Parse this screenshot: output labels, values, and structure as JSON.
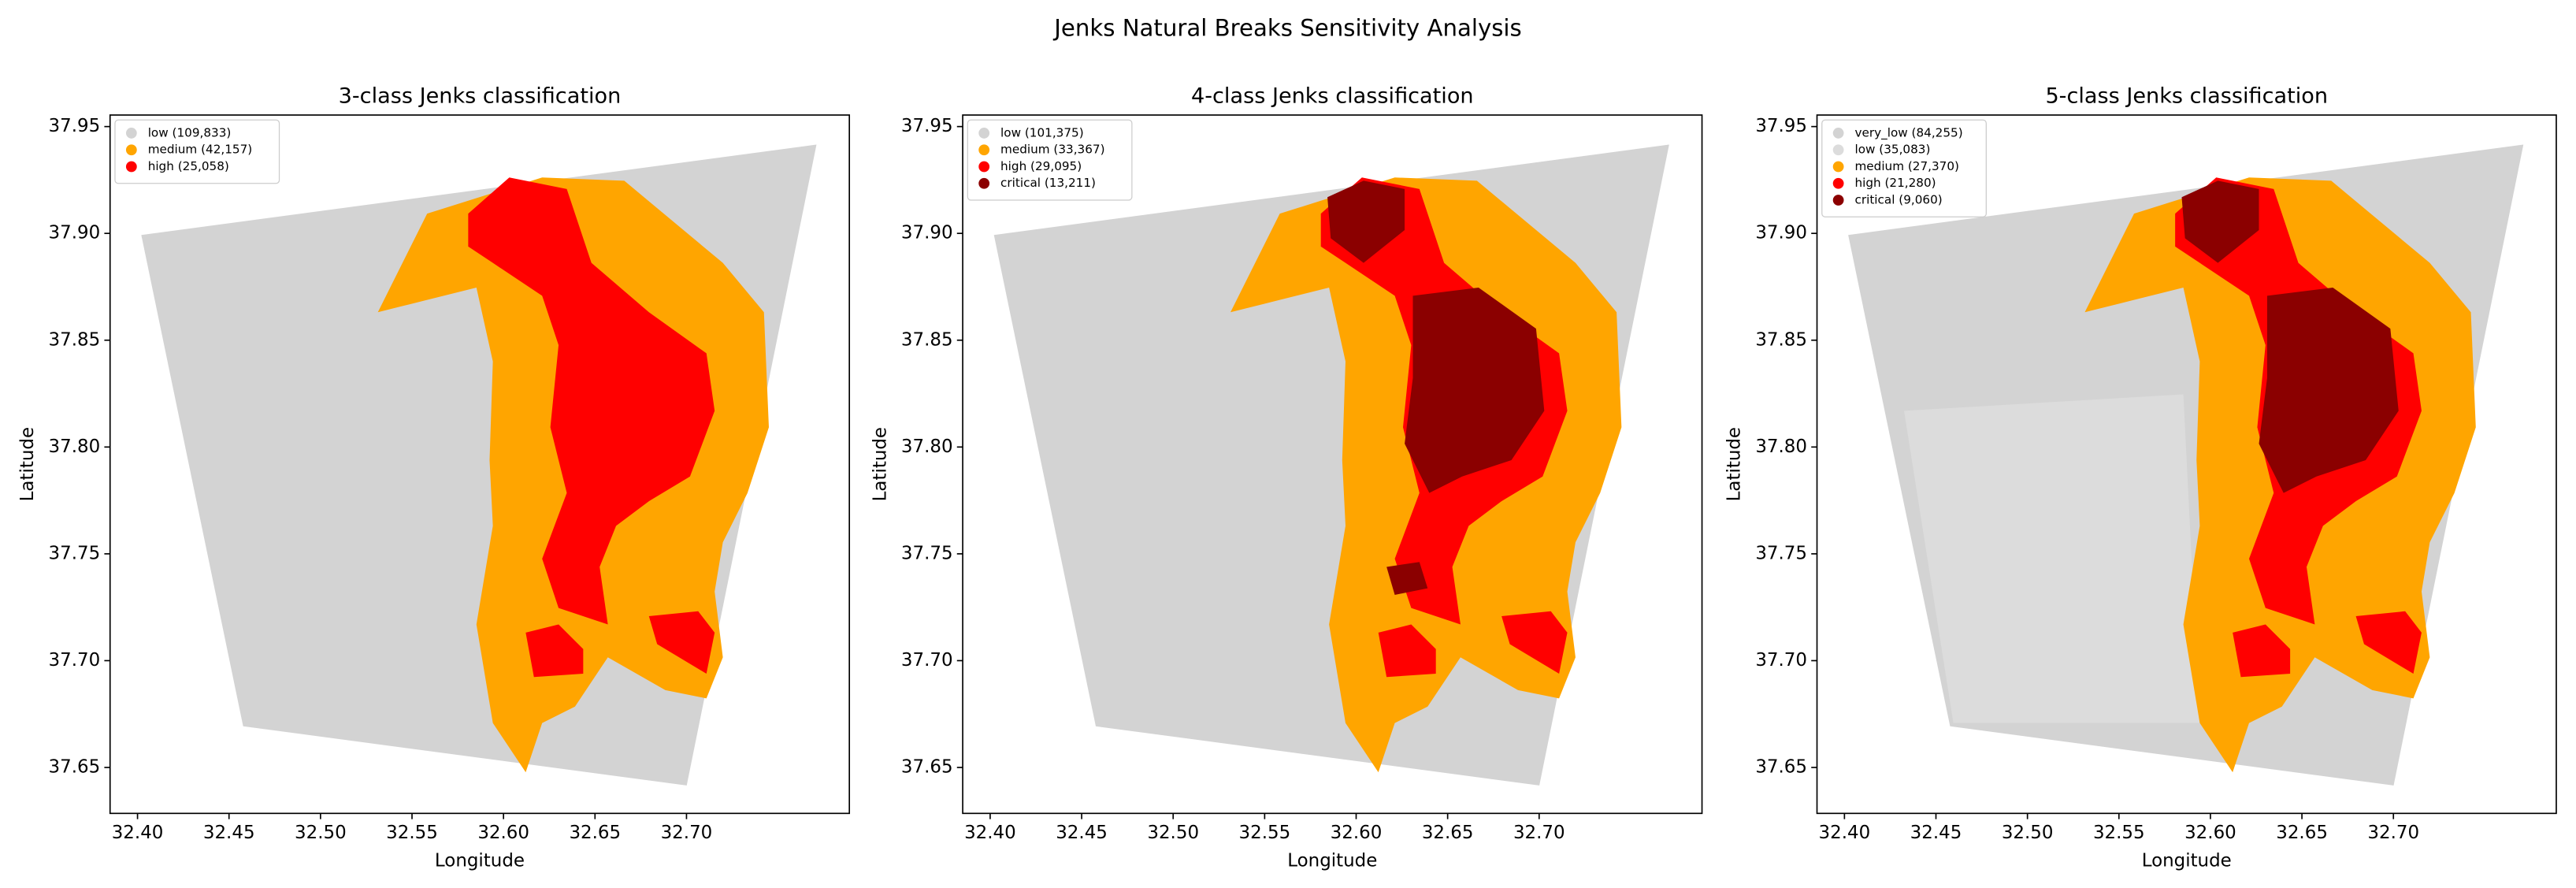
{
  "title": "Jenks Natural Breaks Sensitivity Analysis",
  "chart_data": [
    {
      "type": "map",
      "title": "3-class Jenks classification",
      "x_label": "Longitude",
      "y_label": "Latitude",
      "xlim": [
        32.385,
        32.789
      ],
      "ylim": [
        37.6285,
        37.9554
      ],
      "xticks": [
        {
          "value": 32.4,
          "label": "32.40"
        },
        32.45,
        {
          "value": 32.5,
          "label": "32.50"
        },
        32.55,
        {
          "value": 32.6,
          "label": "32.60"
        },
        32.65,
        {
          "value": 32.7,
          "label": "32.70"
        }
      ],
      "yticks": [
        37.65,
        {
          "value": 37.7,
          "label": "37.70"
        },
        37.75,
        {
          "value": 37.8,
          "label": "37.80"
        },
        37.85,
        {
          "value": 37.9,
          "label": "37.90"
        },
        37.95
      ],
      "legend": "upper left",
      "series": [
        {
          "name": "low (109,833)",
          "color": "#d3d3d3"
        },
        {
          "name": "medium (42,157)",
          "color": "#ffa500"
        },
        {
          "name": "high (25,058)",
          "color": "#ff0000"
        }
      ]
    },
    {
      "type": "map",
      "title": "4-class Jenks classification",
      "x_label": "Longitude",
      "y_label": "Latitude",
      "xlim": [
        32.385,
        32.789
      ],
      "ylim": [
        37.6285,
        37.9554
      ],
      "xticks": [
        {
          "value": 32.4,
          "label": "32.40"
        },
        32.45,
        {
          "value": 32.5,
          "label": "32.50"
        },
        32.55,
        {
          "value": 32.6,
          "label": "32.60"
        },
        32.65,
        {
          "value": 32.7,
          "label": "32.70"
        }
      ],
      "yticks": [
        37.65,
        {
          "value": 37.7,
          "label": "37.70"
        },
        37.75,
        {
          "value": 37.8,
          "label": "37.80"
        },
        37.85,
        {
          "value": 37.9,
          "label": "37.90"
        },
        37.95
      ],
      "legend": "upper left",
      "series": [
        {
          "name": "low (101,375)",
          "color": "#d3d3d3"
        },
        {
          "name": "medium (33,367)",
          "color": "#ffa500"
        },
        {
          "name": "high (29,095)",
          "color": "#ff0000"
        },
        {
          "name": "critical (13,211)",
          "color": "#8b0000"
        }
      ]
    },
    {
      "type": "map",
      "title": "5-class Jenks classification",
      "x_label": "Longitude",
      "y_label": "Latitude",
      "xlim": [
        32.385,
        32.789
      ],
      "ylim": [
        37.6285,
        37.9554
      ],
      "xticks": [
        {
          "value": 32.4,
          "label": "32.40"
        },
        32.45,
        {
          "value": 32.5,
          "label": "32.50"
        },
        32.55,
        {
          "value": 32.6,
          "label": "32.60"
        },
        32.65,
        {
          "value": 32.7,
          "label": "32.70"
        }
      ],
      "yticks": [
        37.65,
        {
          "value": 37.7,
          "label": "37.70"
        },
        37.75,
        {
          "value": 37.8,
          "label": "37.80"
        },
        37.85,
        {
          "value": 37.9,
          "label": "37.90"
        },
        37.95
      ],
      "legend": "upper left",
      "series": [
        {
          "name": "very_low (84,255)",
          "color": "#d3d3d3"
        },
        {
          "name": "low (35,083)",
          "color": "#dcdcdc"
        },
        {
          "name": "medium (27,370)",
          "color": "#ffa500"
        },
        {
          "name": "high (21,280)",
          "color": "#ff0000"
        },
        {
          "name": "critical (9,060)",
          "color": "#8b0000"
        }
      ]
    }
  ]
}
